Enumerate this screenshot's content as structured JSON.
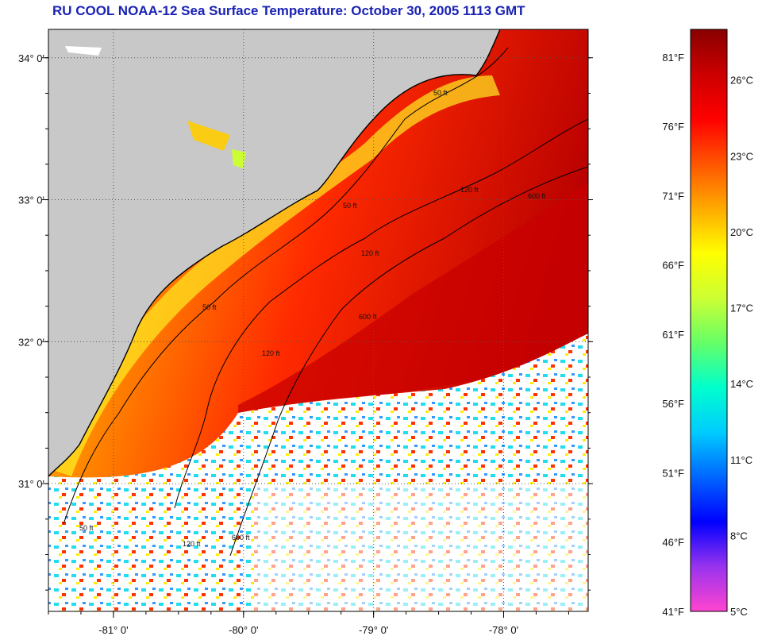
{
  "title": "RU COOL  NOAA-12  Sea Surface Temperature:  October 30, 2005 1113 GMT",
  "map": {
    "lat_labels": [
      "34° 0'",
      "33° 0'",
      "32° 0'",
      "31° 0'"
    ],
    "lon_labels": [
      "-81° 0'",
      "-80° 0'",
      "-79° 0'",
      "-78° 0'"
    ],
    "lat_values": [
      34,
      33,
      32,
      31
    ],
    "lon_values": [
      -81,
      -80,
      -79,
      -78
    ],
    "contour_labels": [
      "50 ft",
      "50 ft",
      "50 ft",
      "50 ft",
      "120 ft",
      "120 ft",
      "120 ft",
      "120 ft",
      "600 ft",
      "600 ft",
      "600 ft"
    ],
    "colors": {
      "land": "#c8c8c8",
      "cloud": "#ffffff",
      "contour": "#000000"
    }
  },
  "colorbar": {
    "fahrenheit_labels": [
      "81°F",
      "76°F",
      "71°F",
      "66°F",
      "61°F",
      "56°F",
      "51°F",
      "46°F",
      "41°F"
    ],
    "celsius_labels": [
      "26°C",
      "23°C",
      "20°C",
      "17°C",
      "14°C",
      "11°C",
      "8°C",
      "5°C"
    ],
    "range_f": [
      41,
      83
    ],
    "range_c": [
      5,
      28
    ],
    "stops": [
      "#ff44d0",
      "#9933ee",
      "#0000ff",
      "#0066ff",
      "#00ccff",
      "#00ffcc",
      "#66ff66",
      "#ccff33",
      "#ffff00",
      "#ffaa00",
      "#ff5500",
      "#ff0000",
      "#cc0000",
      "#880000"
    ]
  }
}
